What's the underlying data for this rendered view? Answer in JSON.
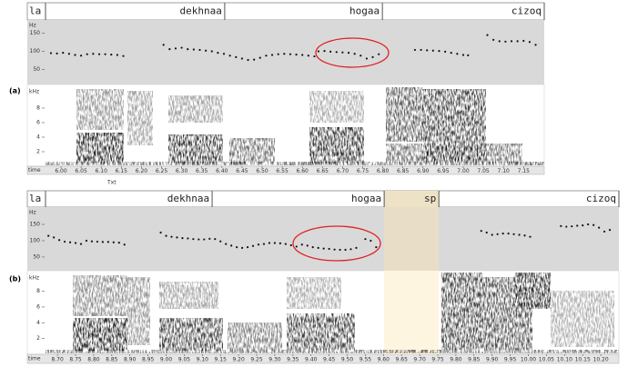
{
  "panels": [
    {
      "label": "(a)",
      "first_word": "la",
      "hz_label": "Hz",
      "khz_label": "kHz",
      "time_label": "time",
      "note": "Txt",
      "time_lim": [
        5.9615,
        7.2014
      ],
      "hz_lim": [
        8,
        187
      ],
      "khz_lim": [
        0,
        11.25
      ],
      "words": [
        {
          "text": "dekhnaa",
          "start": 5.9615,
          "end": 6.407
        },
        {
          "text": "hogaa",
          "start": 6.407,
          "end": 6.799
        },
        {
          "text": "cizoq",
          "start": 6.799,
          "end": 7.2014
        }
      ],
      "hz_ticks": [
        50,
        100,
        150
      ],
      "khz_ticks": [
        2,
        4,
        6,
        8
      ],
      "time_ticks": [
        {
          "value": 6,
          "label": "6.00"
        },
        {
          "value": 6.05,
          "label": "6.05"
        },
        {
          "value": 6.1,
          "label": "6.10"
        },
        {
          "value": 6.15,
          "label": "6.15"
        },
        {
          "value": 6.2,
          "label": "6.20"
        },
        {
          "value": 6.25,
          "label": "6.25"
        },
        {
          "value": 6.3,
          "label": "6.30"
        },
        {
          "value": 6.35,
          "label": "6.35"
        },
        {
          "value": 6.4,
          "label": "6.40"
        },
        {
          "value": 6.45,
          "label": "6.45"
        },
        {
          "value": 6.5,
          "label": "6.50"
        },
        {
          "value": 6.55,
          "label": "6.55"
        },
        {
          "value": 6.6,
          "label": "6.60"
        },
        {
          "value": 6.65,
          "label": "6.65"
        },
        {
          "value": 6.7,
          "label": "6.70"
        },
        {
          "value": 6.75,
          "label": "6.75"
        },
        {
          "value": 6.8,
          "label": "6.80"
        },
        {
          "value": 6.85,
          "label": "6.85"
        },
        {
          "value": 6.9,
          "label": "6.90"
        },
        {
          "value": 6.95,
          "label": "6.95"
        },
        {
          "value": 7,
          "label": "7.00"
        },
        {
          "value": 7.05,
          "label": "7.05"
        },
        {
          "value": 7.1,
          "label": "7.10"
        },
        {
          "value": 7.15,
          "label": "7.15"
        }
      ],
      "pitch": [
        [
          [
            5.975,
            95
          ],
          [
            5.99,
            94
          ],
          [
            6.005,
            96
          ],
          [
            6.02,
            93
          ],
          [
            6.035,
            90
          ],
          [
            6.05,
            88
          ],
          [
            6.065,
            92
          ],
          [
            6.08,
            93
          ],
          [
            6.095,
            92
          ],
          [
            6.11,
            92
          ],
          [
            6.125,
            91
          ],
          [
            6.14,
            90
          ],
          [
            6.155,
            87
          ]
        ],
        [
          [
            6.255,
            118
          ],
          [
            6.27,
            106
          ],
          [
            6.285,
            108
          ],
          [
            6.3,
            110
          ],
          [
            6.315,
            106
          ],
          [
            6.33,
            105
          ],
          [
            6.345,
            104
          ],
          [
            6.36,
            102
          ],
          [
            6.375,
            100
          ],
          [
            6.39,
            96
          ],
          [
            6.405,
            93
          ],
          [
            6.42,
            88
          ],
          [
            6.435,
            84
          ],
          [
            6.45,
            80
          ],
          [
            6.465,
            76
          ],
          [
            6.48,
            77
          ],
          [
            6.495,
            82
          ],
          [
            6.51,
            88
          ],
          [
            6.525,
            90
          ],
          [
            6.54,
            92
          ],
          [
            6.555,
            93
          ],
          [
            6.57,
            92
          ],
          [
            6.585,
            91
          ],
          [
            6.6,
            90
          ],
          [
            6.615,
            88
          ],
          [
            6.63,
            86
          ]
        ],
        [
          [
            6.64,
            100
          ],
          [
            6.655,
            101
          ],
          [
            6.67,
            99
          ],
          [
            6.685,
            98
          ],
          [
            6.7,
            97
          ],
          [
            6.715,
            96
          ],
          [
            6.73,
            93
          ],
          [
            6.745,
            88
          ],
          [
            6.76,
            80
          ],
          [
            6.775,
            84
          ],
          [
            6.79,
            92
          ]
        ],
        [
          [
            6.88,
            104
          ],
          [
            6.895,
            104
          ],
          [
            6.91,
            103
          ],
          [
            6.925,
            102
          ],
          [
            6.94,
            101
          ],
          [
            6.955,
            99
          ],
          [
            6.97,
            96
          ],
          [
            6.985,
            93
          ],
          [
            7.0,
            90
          ],
          [
            7.012,
            89
          ]
        ],
        [
          [
            7.06,
            145
          ],
          [
            7.075,
            132
          ],
          [
            7.09,
            128
          ],
          [
            7.105,
            127
          ],
          [
            7.12,
            128
          ],
          [
            7.135,
            128
          ],
          [
            7.15,
            129
          ],
          [
            7.165,
            126
          ],
          [
            7.18,
            118
          ]
        ]
      ]
    },
    {
      "label": "(b)",
      "first_word": "la",
      "hz_label": "Hz",
      "khz_label": "kHz",
      "time_label": "time",
      "time_lim": [
        8.667,
        10.25
      ],
      "hz_lim": [
        8,
        203
      ],
      "khz_lim": [
        0,
        10.6
      ],
      "words": [
        {
          "text": "dekhnaa",
          "start": 8.667,
          "end": 9.127
        },
        {
          "text": "hogaa",
          "start": 9.127,
          "end": 9.602
        },
        {
          "text": "sp",
          "start": 9.602,
          "end": 9.753
        },
        {
          "text": "cizoq",
          "start": 9.753,
          "end": 10.25
        }
      ],
      "hz_ticks": [
        50,
        100,
        150
      ],
      "khz_ticks": [
        2,
        4,
        6,
        8
      ],
      "time_ticks": [
        {
          "value": 8.7,
          "label": "8.70"
        },
        {
          "value": 8.75,
          "label": "8.75"
        },
        {
          "value": 8.8,
          "label": "8.80"
        },
        {
          "value": 8.85,
          "label": "8.85"
        },
        {
          "value": 8.9,
          "label": "8.90"
        },
        {
          "value": 8.95,
          "label": "8.95"
        },
        {
          "value": 9,
          "label": "9.00"
        },
        {
          "value": 9.05,
          "label": "9.05"
        },
        {
          "value": 9.1,
          "label": "9.10"
        },
        {
          "value": 9.15,
          "label": "9.15"
        },
        {
          "value": 9.2,
          "label": "9.20"
        },
        {
          "value": 9.25,
          "label": "9.25"
        },
        {
          "value": 9.3,
          "label": "9.30"
        },
        {
          "value": 9.35,
          "label": "9.35"
        },
        {
          "value": 9.4,
          "label": "9.40"
        },
        {
          "value": 9.45,
          "label": "9.45"
        },
        {
          "value": 9.5,
          "label": "9.50"
        },
        {
          "value": 9.55,
          "label": "9.55"
        },
        {
          "value": 9.6,
          "label": "9.60"
        },
        {
          "value": 9.65,
          "label": "9.65"
        },
        {
          "value": 9.7,
          "label": "9.70"
        },
        {
          "value": 9.75,
          "label": "9.75"
        },
        {
          "value": 9.8,
          "label": "9.80"
        },
        {
          "value": 9.85,
          "label": "9.85"
        },
        {
          "value": 9.9,
          "label": "9.90"
        },
        {
          "value": 9.95,
          "label": "9.95"
        },
        {
          "value": 10,
          "label": "10.00"
        },
        {
          "value": 10.05,
          "label": "10.05"
        },
        {
          "value": 10.1,
          "label": "10.10"
        },
        {
          "value": 10.15,
          "label": "10.15"
        },
        {
          "value": 10.2,
          "label": "10.20"
        }
      ],
      "pitch": [
        [
          [
            8.675,
            115
          ],
          [
            8.69,
            110
          ],
          [
            8.705,
            102
          ],
          [
            8.72,
            97
          ],
          [
            8.735,
            95
          ],
          [
            8.75,
            93
          ],
          [
            8.765,
            90
          ],
          [
            8.78,
            100
          ],
          [
            8.795,
            98
          ],
          [
            8.81,
            97
          ],
          [
            8.825,
            96
          ],
          [
            8.84,
            96
          ],
          [
            8.855,
            95
          ],
          [
            8.87,
            94
          ],
          [
            8.885,
            88
          ]
        ],
        [
          [
            8.985,
            125
          ],
          [
            9.0,
            115
          ],
          [
            9.015,
            112
          ],
          [
            9.03,
            110
          ],
          [
            9.045,
            108
          ],
          [
            9.06,
            107
          ],
          [
            9.075,
            105
          ],
          [
            9.09,
            104
          ],
          [
            9.105,
            104
          ],
          [
            9.12,
            106
          ],
          [
            9.135,
            105
          ],
          [
            9.15,
            98
          ],
          [
            9.165,
            90
          ],
          [
            9.18,
            85
          ],
          [
            9.195,
            80
          ],
          [
            9.21,
            78
          ],
          [
            9.225,
            80
          ],
          [
            9.24,
            84
          ],
          [
            9.255,
            88
          ],
          [
            9.27,
            90
          ],
          [
            9.285,
            93
          ],
          [
            9.3,
            93
          ],
          [
            9.315,
            92
          ],
          [
            9.33,
            90
          ],
          [
            9.345,
            86
          ],
          [
            9.36,
            82
          ]
        ],
        [
          [
            9.375,
            88
          ],
          [
            9.39,
            85
          ],
          [
            9.405,
            80
          ],
          [
            9.42,
            78
          ],
          [
            9.435,
            76
          ],
          [
            9.45,
            75
          ],
          [
            9.465,
            73
          ],
          [
            9.48,
            72
          ],
          [
            9.495,
            72
          ],
          [
            9.51,
            74
          ],
          [
            9.525,
            78
          ]
        ],
        [
          [
            9.55,
            105
          ],
          [
            9.565,
            100
          ],
          [
            9.58,
            80
          ]
        ],
        [
          [
            9.87,
            130
          ],
          [
            9.885,
            125
          ],
          [
            9.9,
            118
          ],
          [
            9.915,
            120
          ],
          [
            9.93,
            122
          ],
          [
            9.945,
            122
          ],
          [
            9.96,
            120
          ],
          [
            9.975,
            118
          ],
          [
            9.99,
            116
          ],
          [
            10.005,
            112
          ]
        ],
        [
          [
            10.09,
            145
          ],
          [
            10.105,
            143
          ],
          [
            10.12,
            144
          ],
          [
            10.135,
            146
          ],
          [
            10.15,
            147
          ],
          [
            10.165,
            150
          ],
          [
            10.18,
            148
          ],
          [
            10.195,
            140
          ],
          [
            10.21,
            128
          ],
          [
            10.225,
            133
          ]
        ]
      ]
    }
  ]
}
